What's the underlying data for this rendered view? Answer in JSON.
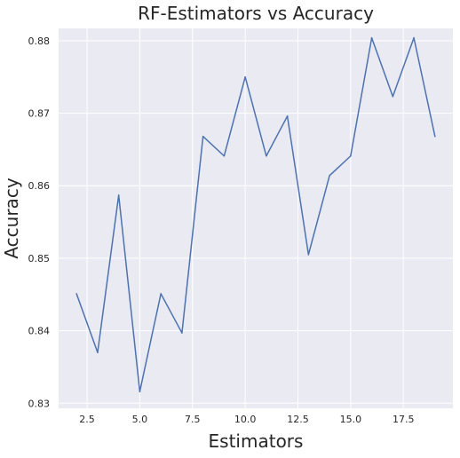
{
  "chart_data": {
    "type": "line",
    "title": "RF-Estimators vs Accuracy",
    "xlabel": "Estimators",
    "ylabel": "Accuracy",
    "xlim": [
      1.15,
      19.85
    ],
    "ylim": [
      0.8293,
      0.8817
    ],
    "x_ticks": [
      2.5,
      5.0,
      7.5,
      10.0,
      12.5,
      15.0,
      17.5
    ],
    "x_tick_labels": [
      "2.5",
      "5.0",
      "7.5",
      "10.0",
      "12.5",
      "15.0",
      "17.5"
    ],
    "y_ticks": [
      0.83,
      0.84,
      0.85,
      0.86,
      0.87,
      0.88
    ],
    "y_tick_labels": [
      "0.83",
      "0.84",
      "0.85",
      "0.86",
      "0.87",
      "0.88"
    ],
    "grid": true,
    "style": "seaborn-darkgrid",
    "background_color": "#eaeaf2",
    "grid_color": "#ffffff",
    "series": [
      {
        "color": "#4c72b0",
        "x": [
          2,
          3,
          4,
          5,
          6,
          7,
          8,
          9,
          10,
          11,
          12,
          13,
          14,
          15,
          16,
          17,
          18,
          19
        ],
        "values": [
          0.8451,
          0.837,
          0.8587,
          0.8316,
          0.8451,
          0.8397,
          0.8668,
          0.8641,
          0.875,
          0.8641,
          0.8696,
          0.8505,
          0.8614,
          0.8641,
          0.8804,
          0.8723,
          0.8804,
          0.8668
        ]
      }
    ]
  }
}
